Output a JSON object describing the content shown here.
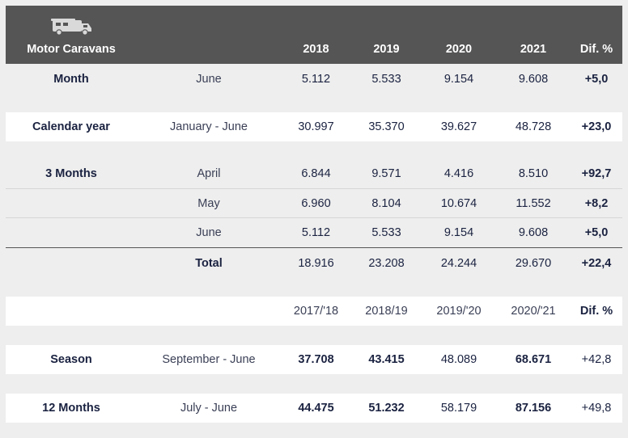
{
  "header": {
    "title": "Motor Caravans",
    "icon": "motorhome-icon",
    "years": [
      "2018",
      "2019",
      "2020",
      "2021"
    ],
    "diff": "Dif. %"
  },
  "month": {
    "label": "Month",
    "period": "June",
    "values": [
      "5.112",
      "5.533",
      "9.154",
      "9.608"
    ],
    "diff": "+5,0"
  },
  "calendar": {
    "label": "Calendar year",
    "period": "January - June",
    "values": [
      "30.997",
      "35.370",
      "39.627",
      "48.728"
    ],
    "diff": "+23,0"
  },
  "three_months": {
    "label": "3 Months",
    "rows": [
      {
        "period": "April",
        "values": [
          "6.844",
          "9.571",
          "4.416",
          "8.510"
        ],
        "diff": "+92,7"
      },
      {
        "period": "May",
        "values": [
          "6.960",
          "8.104",
          "10.674",
          "11.552"
        ],
        "diff": "+8,2"
      },
      {
        "period": "June",
        "values": [
          "5.112",
          "5.533",
          "9.154",
          "9.608"
        ],
        "diff": "+5,0"
      }
    ],
    "total_label": "Total",
    "total_values": [
      "18.916",
      "23.208",
      "24.244",
      "29.670"
    ],
    "total_diff": "+22,4"
  },
  "season_header": {
    "years": [
      "2017/'18",
      "2018/19",
      "2019/'20",
      "2020/'21"
    ],
    "diff": "Dif. %"
  },
  "season": {
    "label": "Season",
    "period": "September - June",
    "values": [
      "37.708",
      "43.415",
      "48.089",
      "68.671"
    ],
    "diff": "+42,8"
  },
  "twelve_months": {
    "label": "12 Months",
    "period": "July - June",
    "values": [
      "44.475",
      "51.232",
      "58.179",
      "87.156"
    ],
    "diff": "+49,8"
  }
}
